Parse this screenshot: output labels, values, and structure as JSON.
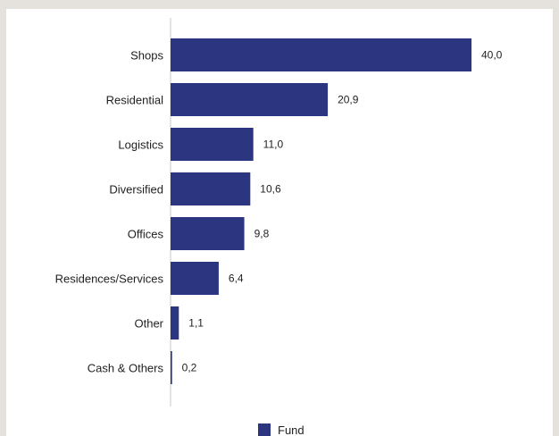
{
  "chart_data": {
    "type": "bar",
    "orientation": "horizontal",
    "categories": [
      "Shops",
      "Residential",
      "Logistics",
      "Diversified",
      "Offices",
      "Residences/Services",
      "Other",
      "Cash & Others"
    ],
    "series": [
      {
        "name": "Fund",
        "values": [
          40.0,
          20.9,
          11.0,
          10.6,
          9.8,
          6.4,
          1.1,
          0.2
        ],
        "value_labels": [
          "40,0",
          "20,9",
          "11,0",
          "10,6",
          "9,8",
          "6,4",
          "1,1",
          "0,2"
        ]
      }
    ],
    "xlim": [
      0,
      40.0
    ],
    "grid": false,
    "legend": {
      "position": "bottom-center",
      "entries": [
        "Fund"
      ]
    },
    "colors": {
      "bar": "#2b3580",
      "axis": "#c8c8c8",
      "text": "#1f1f1f"
    }
  }
}
